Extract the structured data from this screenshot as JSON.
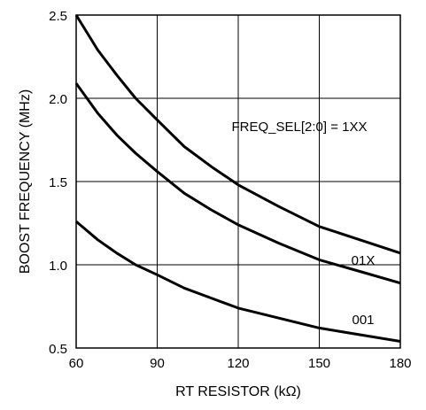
{
  "chart_data": {
    "type": "line",
    "xlabel": "RT RESISTOR (kΩ)",
    "ylabel": "BOOST FREQUENCY (MHz)",
    "xlim": [
      60,
      180
    ],
    "ylim": [
      0.5,
      2.5
    ],
    "x_ticks": [
      "60",
      "90",
      "120",
      "150",
      "180"
    ],
    "y_ticks": [
      "0.5",
      "1.0",
      "1.5",
      "2.0",
      "2.5"
    ],
    "grid": true,
    "line_color": "#000000",
    "series": [
      {
        "name": "FREQ_SEL[2:0] = 1XX",
        "x": [
          60,
          68,
          75,
          82,
          90,
          100,
          110,
          120,
          135,
          150,
          165,
          180
        ],
        "values": [
          2.5,
          2.29,
          2.14,
          2.0,
          1.87,
          1.71,
          1.59,
          1.48,
          1.35,
          1.23,
          1.15,
          1.07
        ]
      },
      {
        "name": "01X",
        "x": [
          60,
          68,
          75,
          82,
          90,
          100,
          110,
          120,
          135,
          150,
          165,
          180
        ],
        "values": [
          2.09,
          1.91,
          1.78,
          1.67,
          1.56,
          1.43,
          1.33,
          1.24,
          1.13,
          1.03,
          0.96,
          0.89
        ]
      },
      {
        "name": "001",
        "x": [
          60,
          68,
          75,
          82,
          90,
          100,
          110,
          120,
          135,
          150,
          165,
          180
        ],
        "values": [
          1.26,
          1.15,
          1.07,
          1.0,
          0.94,
          0.86,
          0.8,
          0.74,
          0.68,
          0.62,
          0.58,
          0.54
        ]
      }
    ]
  }
}
